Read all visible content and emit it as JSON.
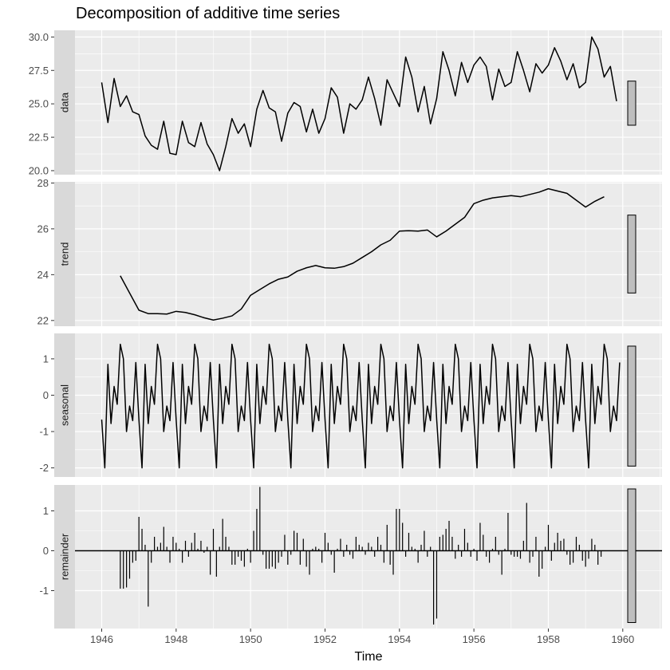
{
  "chart_data": {
    "type": "line",
    "title": "Decomposition of additive time series",
    "xlabel": "Time",
    "x_range": [
      1945.4,
      1961.0
    ],
    "x_ticks": [
      1946,
      1948,
      1950,
      1952,
      1954,
      1956,
      1958,
      1960
    ],
    "x_tick_labels": [
      "1946",
      "1948",
      "1950",
      "1952",
      "1954",
      "1956",
      "1958",
      "1960"
    ],
    "grid": true,
    "colors": {
      "panel_bg": "#ebebeb",
      "strip_bg": "#d9d9d9",
      "grid": "#ffffff",
      "line": "#000000",
      "scale_bar": "#bebebe"
    },
    "panels": [
      {
        "name": "data",
        "type": "line",
        "ylim": [
          19.7,
          30.5
        ],
        "y_ticks": [
          20.0,
          22.5,
          25.0,
          27.5,
          30.0
        ],
        "y_tick_labels": [
          "20.0",
          "22.5",
          "25.0",
          "27.5",
          "30.0"
        ],
        "x": [
          1946.0,
          1946.167,
          1946.333,
          1946.5,
          1946.667,
          1946.833,
          1947.0,
          1947.167,
          1947.333,
          1947.5,
          1947.667,
          1947.833,
          1948.0,
          1948.167,
          1948.333,
          1948.5,
          1948.667,
          1948.833,
          1949.0,
          1949.167,
          1949.333,
          1949.5,
          1949.667,
          1949.833,
          1950.0,
          1950.167,
          1950.333,
          1950.5,
          1950.667,
          1950.833,
          1951.0,
          1951.167,
          1951.333,
          1951.5,
          1951.667,
          1951.833,
          1952.0,
          1952.167,
          1952.333,
          1952.5,
          1952.667,
          1952.833,
          1953.0,
          1953.167,
          1953.333,
          1953.5,
          1953.667,
          1953.833,
          1954.0,
          1954.167,
          1954.333,
          1954.5,
          1954.667,
          1954.833,
          1955.0,
          1955.167,
          1955.333,
          1955.5,
          1955.667,
          1955.833,
          1956.0,
          1956.167,
          1956.333,
          1956.5,
          1956.667,
          1956.833,
          1957.0,
          1957.167,
          1957.333,
          1957.5,
          1957.667,
          1957.833,
          1958.0,
          1958.167,
          1958.333,
          1958.5,
          1958.667,
          1958.833,
          1959.0,
          1959.167,
          1959.333,
          1959.5,
          1959.667,
          1959.833
        ],
        "values": [
          26.6,
          23.6,
          26.9,
          24.8,
          25.6,
          24.4,
          24.2,
          22.6,
          21.9,
          21.6,
          23.7,
          21.3,
          21.2,
          23.7,
          22.1,
          21.8,
          23.6,
          22.0,
          21.2,
          20.0,
          21.8,
          23.9,
          22.8,
          23.5,
          21.8,
          24.6,
          26.0,
          24.7,
          24.4,
          22.2,
          24.3,
          25.1,
          24.8,
          22.9,
          24.6,
          22.8,
          23.9,
          26.2,
          25.5,
          22.8,
          25.0,
          24.6,
          25.3,
          27.0,
          25.4,
          23.4,
          26.8,
          25.8,
          24.8,
          28.5,
          27.0,
          24.4,
          26.3,
          23.5,
          25.4,
          28.9,
          27.5,
          25.6,
          28.1,
          26.6,
          27.9,
          28.5,
          27.8,
          25.3,
          27.6,
          26.3,
          26.6,
          28.9,
          27.5,
          25.9,
          28.0,
          27.3,
          27.9,
          29.2,
          28.2,
          26.8,
          28.0,
          26.2,
          26.6,
          30.0,
          29.1,
          27.0,
          27.8,
          25.2
        ],
        "scale_bar": [
          23.4,
          26.7
        ]
      },
      {
        "name": "trend",
        "type": "line",
        "ylim": [
          21.75,
          28.05
        ],
        "y_ticks": [
          22,
          24,
          26,
          28
        ],
        "y_tick_labels": [
          "22",
          "24",
          "26",
          "28"
        ],
        "x": [
          1946.5,
          1946.75,
          1947.0,
          1947.25,
          1947.5,
          1947.75,
          1948.0,
          1948.25,
          1948.5,
          1948.75,
          1949.0,
          1949.25,
          1949.5,
          1949.75,
          1950.0,
          1950.25,
          1950.5,
          1950.75,
          1951.0,
          1951.25,
          1951.5,
          1951.75,
          1952.0,
          1952.25,
          1952.5,
          1952.75,
          1953.0,
          1953.25,
          1953.5,
          1953.75,
          1954.0,
          1954.25,
          1954.5,
          1954.75,
          1955.0,
          1955.25,
          1955.5,
          1955.75,
          1956.0,
          1956.25,
          1956.5,
          1956.75,
          1957.0,
          1957.25,
          1957.5,
          1957.75,
          1958.0,
          1958.25,
          1958.5,
          1958.75,
          1959.0,
          1959.25,
          1959.5
        ],
        "values": [
          23.95,
          23.2,
          22.45,
          22.3,
          22.3,
          22.28,
          22.4,
          22.35,
          22.25,
          22.12,
          22.02,
          22.1,
          22.2,
          22.5,
          23.1,
          23.35,
          23.6,
          23.8,
          23.9,
          24.15,
          24.3,
          24.4,
          24.3,
          24.28,
          24.35,
          24.5,
          24.75,
          25.0,
          25.3,
          25.5,
          25.9,
          25.92,
          25.9,
          25.95,
          25.65,
          25.9,
          26.2,
          26.5,
          27.1,
          27.25,
          27.35,
          27.4,
          27.45,
          27.4,
          27.5,
          27.6,
          27.75,
          27.65,
          27.55,
          27.25,
          26.95,
          27.2,
          27.4
        ],
        "scale_bar": [
          23.2,
          26.6
        ]
      },
      {
        "name": "seasonal",
        "type": "line",
        "ylim": [
          -2.25,
          1.7
        ],
        "y_ticks": [
          -2,
          -1,
          0,
          1
        ],
        "y_tick_labels": [
          "-2",
          "-1",
          "0",
          "1"
        ],
        "pattern_one_year": [
          -0.67,
          -2.0,
          0.85,
          -0.78,
          0.24,
          -0.25,
          1.4,
          1.0,
          -1.0,
          -0.3,
          -0.7,
          0.9
        ],
        "years": [
          1946,
          1947,
          1948,
          1949,
          1950,
          1951,
          1952,
          1953,
          1954,
          1955,
          1956,
          1957,
          1958,
          1959
        ],
        "scale_bar": [
          -1.95,
          1.35
        ]
      },
      {
        "name": "remainder",
        "type": "bar",
        "ylim": [
          -1.95,
          1.65
        ],
        "y_ticks": [
          -1,
          0,
          1
        ],
        "y_tick_labels": [
          "-1",
          "0",
          "1"
        ],
        "x": [
          1946.5,
          1946.583,
          1946.667,
          1946.75,
          1946.833,
          1946.917,
          1947.0,
          1947.083,
          1947.167,
          1947.25,
          1947.333,
          1947.417,
          1947.5,
          1947.583,
          1947.667,
          1947.75,
          1947.833,
          1947.917,
          1948.0,
          1948.083,
          1948.167,
          1948.25,
          1948.333,
          1948.417,
          1948.5,
          1948.583,
          1948.667,
          1948.75,
          1948.833,
          1948.917,
          1949.0,
          1949.083,
          1949.167,
          1949.25,
          1949.333,
          1949.417,
          1949.5,
          1949.583,
          1949.667,
          1949.75,
          1949.833,
          1949.917,
          1950.0,
          1950.083,
          1950.167,
          1950.25,
          1950.333,
          1950.417,
          1950.5,
          1950.583,
          1950.667,
          1950.75,
          1950.833,
          1950.917,
          1951.0,
          1951.083,
          1951.167,
          1951.25,
          1951.333,
          1951.417,
          1951.5,
          1951.583,
          1951.667,
          1951.75,
          1951.833,
          1951.917,
          1952.0,
          1952.083,
          1952.167,
          1952.25,
          1952.333,
          1952.417,
          1952.5,
          1952.583,
          1952.667,
          1952.75,
          1952.833,
          1952.917,
          1953.0,
          1953.083,
          1953.167,
          1953.25,
          1953.333,
          1953.417,
          1953.5,
          1953.583,
          1953.667,
          1953.75,
          1953.833,
          1953.917,
          1954.0,
          1954.083,
          1954.167,
          1954.25,
          1954.333,
          1954.417,
          1954.5,
          1954.583,
          1954.667,
          1954.75,
          1954.833,
          1954.917,
          1955.0,
          1955.083,
          1955.167,
          1955.25,
          1955.333,
          1955.417,
          1955.5,
          1955.583,
          1955.667,
          1955.75,
          1955.833,
          1955.917,
          1956.0,
          1956.083,
          1956.167,
          1956.25,
          1956.333,
          1956.417,
          1956.5,
          1956.583,
          1956.667,
          1956.75,
          1956.833,
          1956.917,
          1957.0,
          1957.083,
          1957.167,
          1957.25,
          1957.333,
          1957.417,
          1957.5,
          1957.583,
          1957.667,
          1957.75,
          1957.833,
          1957.917,
          1958.0,
          1958.083,
          1958.167,
          1958.25,
          1958.333,
          1958.417,
          1958.5,
          1958.583,
          1958.667,
          1958.75,
          1958.833,
          1958.917,
          1959.0,
          1959.083,
          1959.167,
          1959.25,
          1959.333,
          1959.417
        ],
        "values": [
          -0.95,
          -0.95,
          -0.92,
          -0.7,
          -0.3,
          -0.25,
          0.85,
          0.55,
          0.15,
          -1.4,
          -0.3,
          0.35,
          0.1,
          0.2,
          0.6,
          0.1,
          -0.3,
          0.35,
          0.2,
          0.05,
          -0.3,
          0.25,
          -0.15,
          0.2,
          0.45,
          0.05,
          0.25,
          -0.05,
          0.1,
          -0.6,
          0.55,
          -0.65,
          0.1,
          0.8,
          0.35,
          0.1,
          -0.35,
          -0.35,
          -0.15,
          -0.25,
          -0.4,
          0.05,
          -0.3,
          0.5,
          1.05,
          1.6,
          -0.1,
          -0.45,
          -0.45,
          -0.4,
          -0.45,
          -0.3,
          -0.15,
          0.4,
          -0.35,
          -0.1,
          0.5,
          0.45,
          -0.35,
          0.3,
          -0.4,
          -0.6,
          0.05,
          0.1,
          0.05,
          -0.3,
          0.45,
          0.2,
          -0.1,
          -0.55,
          0.05,
          0.3,
          -0.15,
          0.15,
          -0.1,
          -0.2,
          0.35,
          0.15,
          0.1,
          -0.1,
          0.2,
          0.1,
          -0.15,
          0.35,
          0.15,
          -0.3,
          0.65,
          -0.35,
          -0.6,
          1.05,
          1.05,
          0.7,
          -0.15,
          0.45,
          0.1,
          0.05,
          -0.3,
          0.15,
          0.5,
          -0.15,
          0.1,
          -1.85,
          -1.7,
          0.35,
          0.4,
          0.55,
          0.75,
          0.35,
          -0.2,
          0.15,
          -0.15,
          0.55,
          0.2,
          -0.15,
          0.05,
          -0.25,
          0.7,
          0.4,
          -0.15,
          -0.3,
          0.05,
          0.35,
          -0.1,
          -0.6,
          0.05,
          0.95,
          -0.1,
          -0.15,
          -0.15,
          -0.2,
          0.25,
          1.2,
          -0.3,
          -0.15,
          0.35,
          -0.65,
          -0.45,
          0.1,
          0.65,
          -0.25,
          0.2,
          0.45,
          0.25,
          0.3,
          -0.1,
          -0.35,
          -0.3,
          0.35,
          0.15,
          -0.25,
          -0.4,
          -0.2,
          0.3,
          0.15,
          -0.35,
          -0.15
        ],
        "scale_bar": [
          -1.8,
          1.55
        ]
      }
    ]
  }
}
